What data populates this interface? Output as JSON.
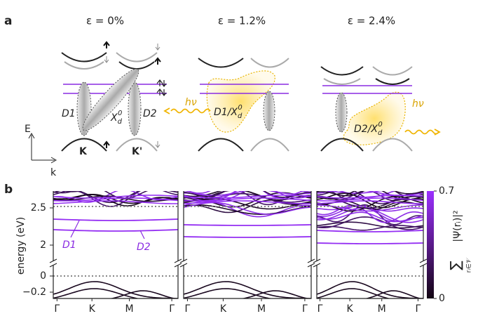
{
  "panel_a": {
    "label": "a",
    "axes": {
      "energy": "E",
      "momentum": "k"
    },
    "schemes": [
      {
        "title": "ε = 0%",
        "valleys": [
          "K",
          "K'"
        ],
        "states": [
          "D1",
          "D2"
        ],
        "exciton": {
          "base": "X",
          "sub": "d",
          "sup": "0"
        }
      },
      {
        "title": "ε = 1.2%",
        "photon": "hν",
        "exciton": {
          "base": "D1/X",
          "sub": "d",
          "sup": "0"
        }
      },
      {
        "title": "ε = 2.4%",
        "photon": "hν",
        "exciton": {
          "base": "D2/X",
          "sub": "d",
          "sup": "0"
        }
      }
    ]
  },
  "panel_b": {
    "label": "b",
    "y_axis_label": "energy (eV)",
    "y_ticks": [
      "2.5",
      "2",
      "0",
      "−0.2"
    ],
    "x_ticks": [
      "Γ",
      "K",
      "M",
      "Γ"
    ],
    "state_labels": [
      "D1",
      "D2"
    ],
    "colorbar": {
      "ticks": [
        "0.7",
        "0"
      ],
      "label": {
        "sum": "∑",
        "sum_index": "rᵢ∈𝒱",
        "expr": "|Ψ(rᵢ)|²"
      }
    }
  }
}
